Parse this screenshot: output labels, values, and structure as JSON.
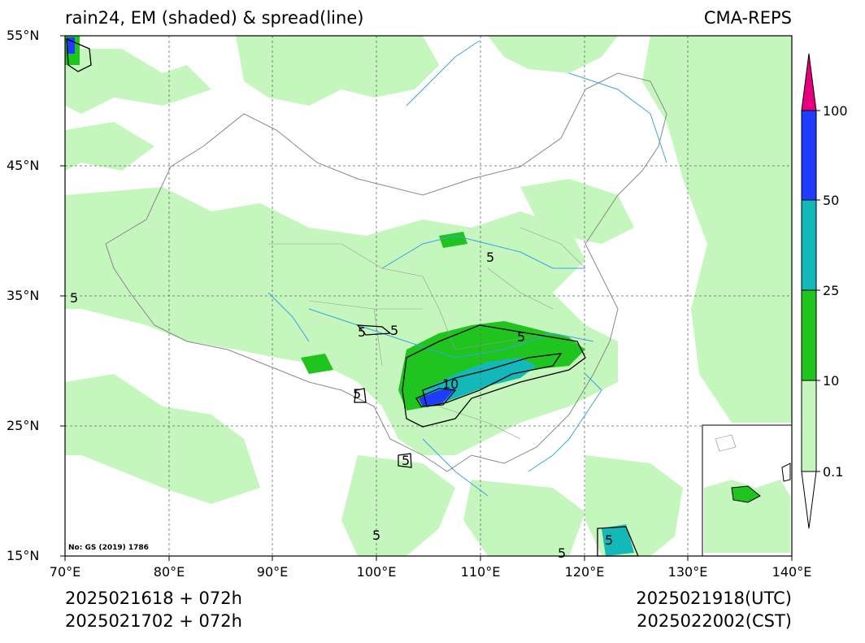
{
  "header": {
    "title": "rain24, EM (shaded) & spread(line)",
    "source": "CMA-REPS"
  },
  "map": {
    "lat_ticks": [
      "55°N",
      "45°N",
      "35°N",
      "25°N",
      "15°N"
    ],
    "lon_ticks": [
      "70°E",
      "80°E",
      "90°E",
      "100°E",
      "110°E",
      "120°E",
      "130°E",
      "140°E"
    ],
    "note": "No: GS (2019) 1786",
    "contour_labels": [
      "5",
      "5",
      "5",
      "5",
      "10",
      "5",
      "5",
      "5",
      "5",
      "5",
      "5"
    ]
  },
  "colorbar": {
    "labels": [
      "0.1",
      "10",
      "25",
      "50",
      "100"
    ],
    "colors": {
      "below_0_1": "#ffffff",
      "0_1_to_10": "#c5f6bd",
      "10_to_25": "#1fc41f",
      "25_to_50": "#13b9b9",
      "50_to_100": "#1e3cff",
      "above_100": "#e6007e"
    }
  },
  "footer": {
    "init_utc": "2025021618  +  072h",
    "init_cst": "2025021702  +  072h",
    "valid_utc": "2025021918(UTC)",
    "valid_cst": "2025022002(CST)"
  }
}
